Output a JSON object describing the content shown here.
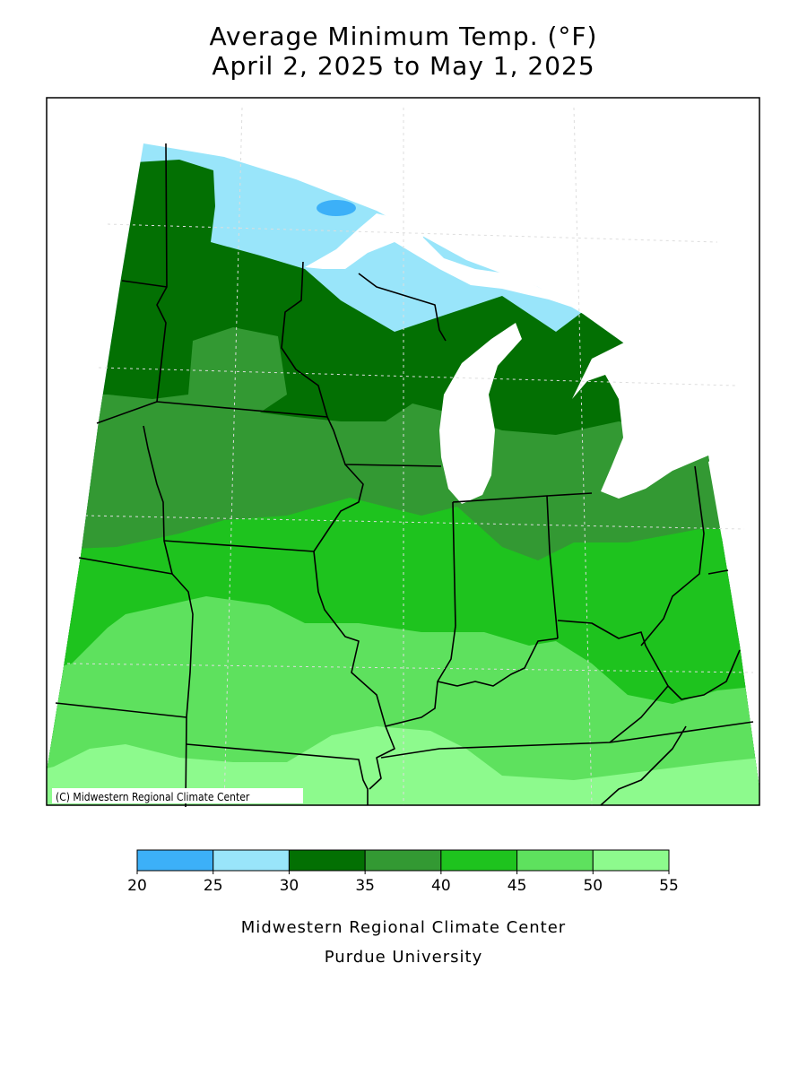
{
  "title": [
    "Average Minimum Temp. (°F)",
    "April 2, 2025 to May 1, 2025"
  ],
  "map": {
    "credit": "(C) Midwestern Regional Climate Center"
  },
  "legend": {
    "ticks": [
      20,
      25,
      30,
      35,
      40,
      45,
      50,
      55
    ],
    "colors": [
      "#3cb0f8",
      "#99e5fa",
      "#037003",
      "#339933",
      "#1ec31e",
      "#5ee15e",
      "#8dfa8d"
    ]
  },
  "footer": [
    "Midwestern Regional Climate Center",
    "Purdue University"
  ]
}
